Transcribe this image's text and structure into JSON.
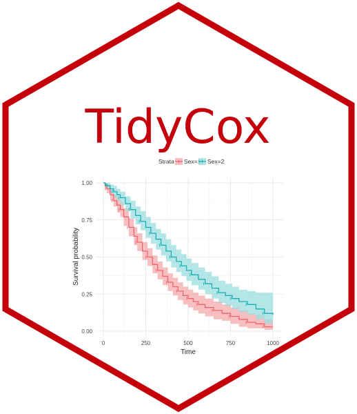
{
  "logo": {
    "title": "TidyCox",
    "border_color": "#c4000a"
  },
  "chart_data": {
    "type": "line",
    "subtype": "kaplan-meier survival curve with confidence bands",
    "xlabel": "Time",
    "ylabel": "Survival probability",
    "xlim": [
      0,
      1022
    ],
    "ylim": [
      0,
      1
    ],
    "xticks": [
      "0",
      "250",
      "500",
      "750",
      "1000"
    ],
    "yticks": [
      "0.00",
      "0.25",
      "0.50",
      "0.75",
      "1.00"
    ],
    "grid": true,
    "legend": {
      "title": "Strata",
      "position": "top",
      "entries": [
        "Sex=1",
        "Sex=2"
      ]
    },
    "series": [
      {
        "name": "Sex=1",
        "color": "#f0656d",
        "band_color": "#f4a9a9",
        "x": [
          0,
          10,
          20,
          40,
          60,
          80,
          100,
          120,
          150,
          180,
          200,
          230,
          260,
          290,
          320,
          350,
          380,
          410,
          440,
          470,
          500,
          530,
          560,
          600,
          650,
          700,
          750,
          800,
          850,
          900,
          950,
          1000
        ],
        "y": [
          1.0,
          0.98,
          0.96,
          0.92,
          0.88,
          0.85,
          0.82,
          0.77,
          0.7,
          0.64,
          0.6,
          0.54,
          0.5,
          0.45,
          0.41,
          0.37,
          0.33,
          0.3,
          0.27,
          0.24,
          0.22,
          0.2,
          0.18,
          0.16,
          0.14,
          0.12,
          0.1,
          0.08,
          0.06,
          0.05,
          0.03,
          0.03
        ],
        "lower": [
          1.0,
          0.96,
          0.93,
          0.88,
          0.84,
          0.8,
          0.77,
          0.71,
          0.64,
          0.58,
          0.54,
          0.48,
          0.44,
          0.39,
          0.35,
          0.31,
          0.27,
          0.24,
          0.21,
          0.18,
          0.16,
          0.14,
          0.12,
          0.1,
          0.08,
          0.07,
          0.05,
          0.03,
          0.02,
          0.02,
          0.01,
          0.01
        ],
        "upper": [
          1.0,
          1.0,
          0.99,
          0.96,
          0.92,
          0.9,
          0.87,
          0.83,
          0.76,
          0.7,
          0.66,
          0.6,
          0.56,
          0.51,
          0.47,
          0.43,
          0.39,
          0.36,
          0.33,
          0.3,
          0.28,
          0.26,
          0.24,
          0.22,
          0.2,
          0.18,
          0.16,
          0.14,
          0.12,
          0.11,
          0.08,
          0.07
        ]
      },
      {
        "name": "Sex=2",
        "color": "#19aeb3",
        "band_color": "#9bdedf",
        "x": [
          0,
          10,
          20,
          40,
          60,
          80,
          100,
          130,
          160,
          190,
          220,
          250,
          280,
          310,
          340,
          370,
          400,
          430,
          460,
          490,
          520,
          560,
          600,
          640,
          680,
          720,
          760,
          800,
          850,
          900,
          950,
          1000
        ],
        "y": [
          1.0,
          0.99,
          0.98,
          0.96,
          0.94,
          0.92,
          0.9,
          0.86,
          0.82,
          0.78,
          0.74,
          0.7,
          0.66,
          0.62,
          0.58,
          0.54,
          0.5,
          0.47,
          0.44,
          0.41,
          0.38,
          0.35,
          0.32,
          0.29,
          0.26,
          0.24,
          0.22,
          0.2,
          0.18,
          0.15,
          0.12,
          0.11
        ],
        "lower": [
          1.0,
          0.98,
          0.96,
          0.93,
          0.9,
          0.88,
          0.85,
          0.81,
          0.76,
          0.72,
          0.68,
          0.63,
          0.59,
          0.55,
          0.51,
          0.47,
          0.43,
          0.4,
          0.37,
          0.34,
          0.31,
          0.28,
          0.25,
          0.22,
          0.19,
          0.17,
          0.15,
          0.13,
          0.11,
          0.08,
          0.05,
          0.04
        ],
        "upper": [
          1.0,
          1.0,
          1.0,
          0.99,
          0.98,
          0.96,
          0.94,
          0.91,
          0.88,
          0.84,
          0.81,
          0.77,
          0.73,
          0.69,
          0.66,
          0.62,
          0.58,
          0.55,
          0.52,
          0.49,
          0.46,
          0.43,
          0.4,
          0.37,
          0.34,
          0.32,
          0.3,
          0.28,
          0.27,
          0.26,
          0.26,
          0.26
        ]
      }
    ]
  }
}
